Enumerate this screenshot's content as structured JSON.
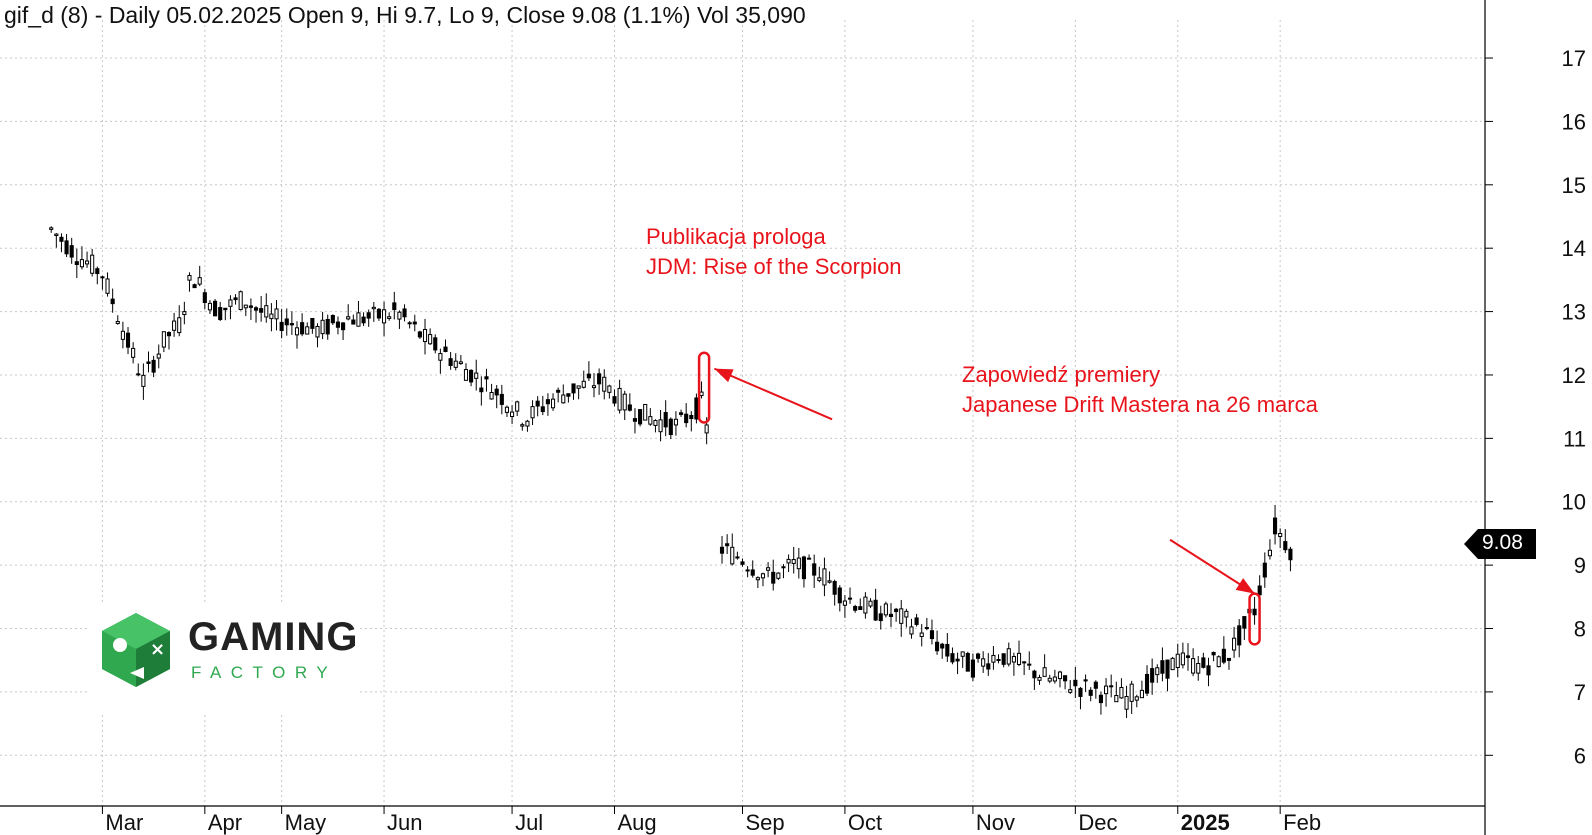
{
  "header": {
    "title": "gif_d (8) - Daily 05.02.2025 Open 9, Hi 9.7, Lo 9, Close 9.08 (1.1%) Vol 35,090"
  },
  "annotations": {
    "prolog_line1": "Publikacja prologa",
    "prolog_line2": "JDM: Rise of the Scorpion",
    "premiere_line1": "Zapowiedź premiery",
    "premiere_line2": "Japanese Drift Mastera na 26 marca"
  },
  "logo": {
    "word": "GAMING",
    "sub": "FACTORY"
  },
  "last_price_label": "9.08",
  "colors": {
    "annotation": "#e8141b",
    "logo_green": "#2fa84f",
    "candles": "#000000"
  },
  "chart_data": {
    "type": "candlestick",
    "symbol": "gif_d (8)",
    "interval": "Daily",
    "y_ticks": [
      "17",
      "16",
      "15",
      "14",
      "13",
      "12",
      "11",
      "10",
      "9",
      "8",
      "7",
      "6"
    ],
    "ylim": [
      5.2,
      17.6
    ],
    "x_ticks": [
      {
        "label": "Mar",
        "x": 2
      },
      {
        "label": "Apr",
        "x": 6
      },
      {
        "label": "May",
        "x": 9
      },
      {
        "label": "Jun",
        "x": 13
      },
      {
        "label": "Jul",
        "x": 18
      },
      {
        "label": "Aug",
        "x": 22
      },
      {
        "label": "Sep",
        "x": 27
      },
      {
        "label": "Oct",
        "x": 31
      },
      {
        "label": "Nov",
        "x": 36
      },
      {
        "label": "Dec",
        "x": 40
      },
      {
        "label": "2025",
        "x": 44,
        "bold": true
      },
      {
        "label": "Feb",
        "x": 48
      }
    ],
    "xlim": [
      -2,
      56
    ],
    "grid": true,
    "path": [
      [
        0,
        14.3
      ],
      [
        1,
        13.9
      ],
      [
        2,
        13.6
      ],
      [
        3,
        12.5
      ],
      [
        3.6,
        11.9
      ],
      [
        4.5,
        12.6
      ],
      [
        5,
        12.8
      ],
      [
        5.5,
        13.6
      ],
      [
        6.5,
        13.0
      ],
      [
        7.5,
        13.2
      ],
      [
        8.5,
        12.9
      ],
      [
        9.5,
        12.8
      ],
      [
        10.5,
        12.7
      ],
      [
        11.5,
        12.9
      ],
      [
        12.5,
        12.9
      ],
      [
        13.5,
        13.0
      ],
      [
        14.5,
        12.6
      ],
      [
        15.5,
        12.3
      ],
      [
        16.5,
        12.0
      ],
      [
        17.5,
        11.7
      ],
      [
        18.5,
        11.3
      ],
      [
        19.5,
        11.6
      ],
      [
        20.5,
        11.8
      ],
      [
        21.5,
        11.9
      ],
      [
        22.5,
        11.5
      ],
      [
        23.5,
        11.3
      ],
      [
        24.5,
        11.2
      ],
      [
        25.5,
        11.6
      ],
      [
        26,
        9.3
      ],
      [
        27,
        9.1
      ],
      [
        28,
        8.8
      ],
      [
        29,
        9.0
      ],
      [
        30,
        8.9
      ],
      [
        31,
        8.5
      ],
      [
        32,
        8.3
      ],
      [
        33,
        8.2
      ],
      [
        34,
        8.0
      ],
      [
        35,
        7.6
      ],
      [
        36,
        7.4
      ],
      [
        37,
        7.6
      ],
      [
        38,
        7.4
      ],
      [
        39,
        7.2
      ],
      [
        40,
        7.1
      ],
      [
        41,
        7.0
      ],
      [
        42,
        6.9
      ],
      [
        43,
        7.2
      ],
      [
        44,
        7.5
      ],
      [
        45,
        7.4
      ],
      [
        46,
        7.6
      ],
      [
        47,
        8.3
      ],
      [
        47.8,
        9.6
      ],
      [
        48.5,
        9.2
      ]
    ],
    "highlights": [
      {
        "x": 25.5,
        "lo": 11.25,
        "hi": 12.35
      },
      {
        "x": 47.0,
        "lo": 7.75,
        "hi": 8.55
      }
    ],
    "arrows": [
      {
        "from": [
          30.5,
          11.3
        ],
        "to": [
          25.9,
          12.1
        ]
      },
      {
        "from": [
          43.7,
          9.4
        ],
        "to": [
          47.0,
          8.55
        ]
      }
    ],
    "last_close": 9.08
  }
}
